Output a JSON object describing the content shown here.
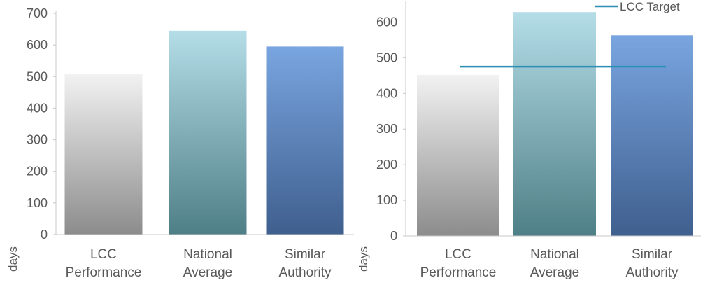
{
  "chart_data": [
    {
      "type": "bar",
      "categories": [
        "LCC|Performance",
        "National|Average",
        "Similar|Authority"
      ],
      "values": [
        508,
        645,
        595
      ],
      "ylabel": "days",
      "ylim": [
        0,
        700
      ],
      "yticks": [
        0,
        100,
        200,
        300,
        400,
        500,
        600,
        700
      ],
      "grid": false,
      "bar_colors": [
        [
          "#f2f2f2",
          "#8c8c8c"
        ],
        [
          "#b4dde8",
          "#4f7f86"
        ],
        [
          "#79a5e0",
          "#3f5f8e"
        ]
      ]
    },
    {
      "type": "bar",
      "categories": [
        "LCC|Performance",
        "National|Average",
        "Similar|Authority"
      ],
      "values": [
        452,
        628,
        563
      ],
      "ylabel": "days",
      "ylim": [
        0,
        650
      ],
      "yticks": [
        0,
        100,
        200,
        300,
        400,
        500,
        600
      ],
      "grid": false,
      "target": {
        "name": "LCC Target",
        "value": 475,
        "color": "#2e8fb5"
      },
      "legend": "top-right",
      "bar_colors": [
        [
          "#f2f2f2",
          "#8c8c8c"
        ],
        [
          "#b4dde8",
          "#4f7f86"
        ],
        [
          "#79a5e0",
          "#3f5f8e"
        ]
      ]
    }
  ]
}
